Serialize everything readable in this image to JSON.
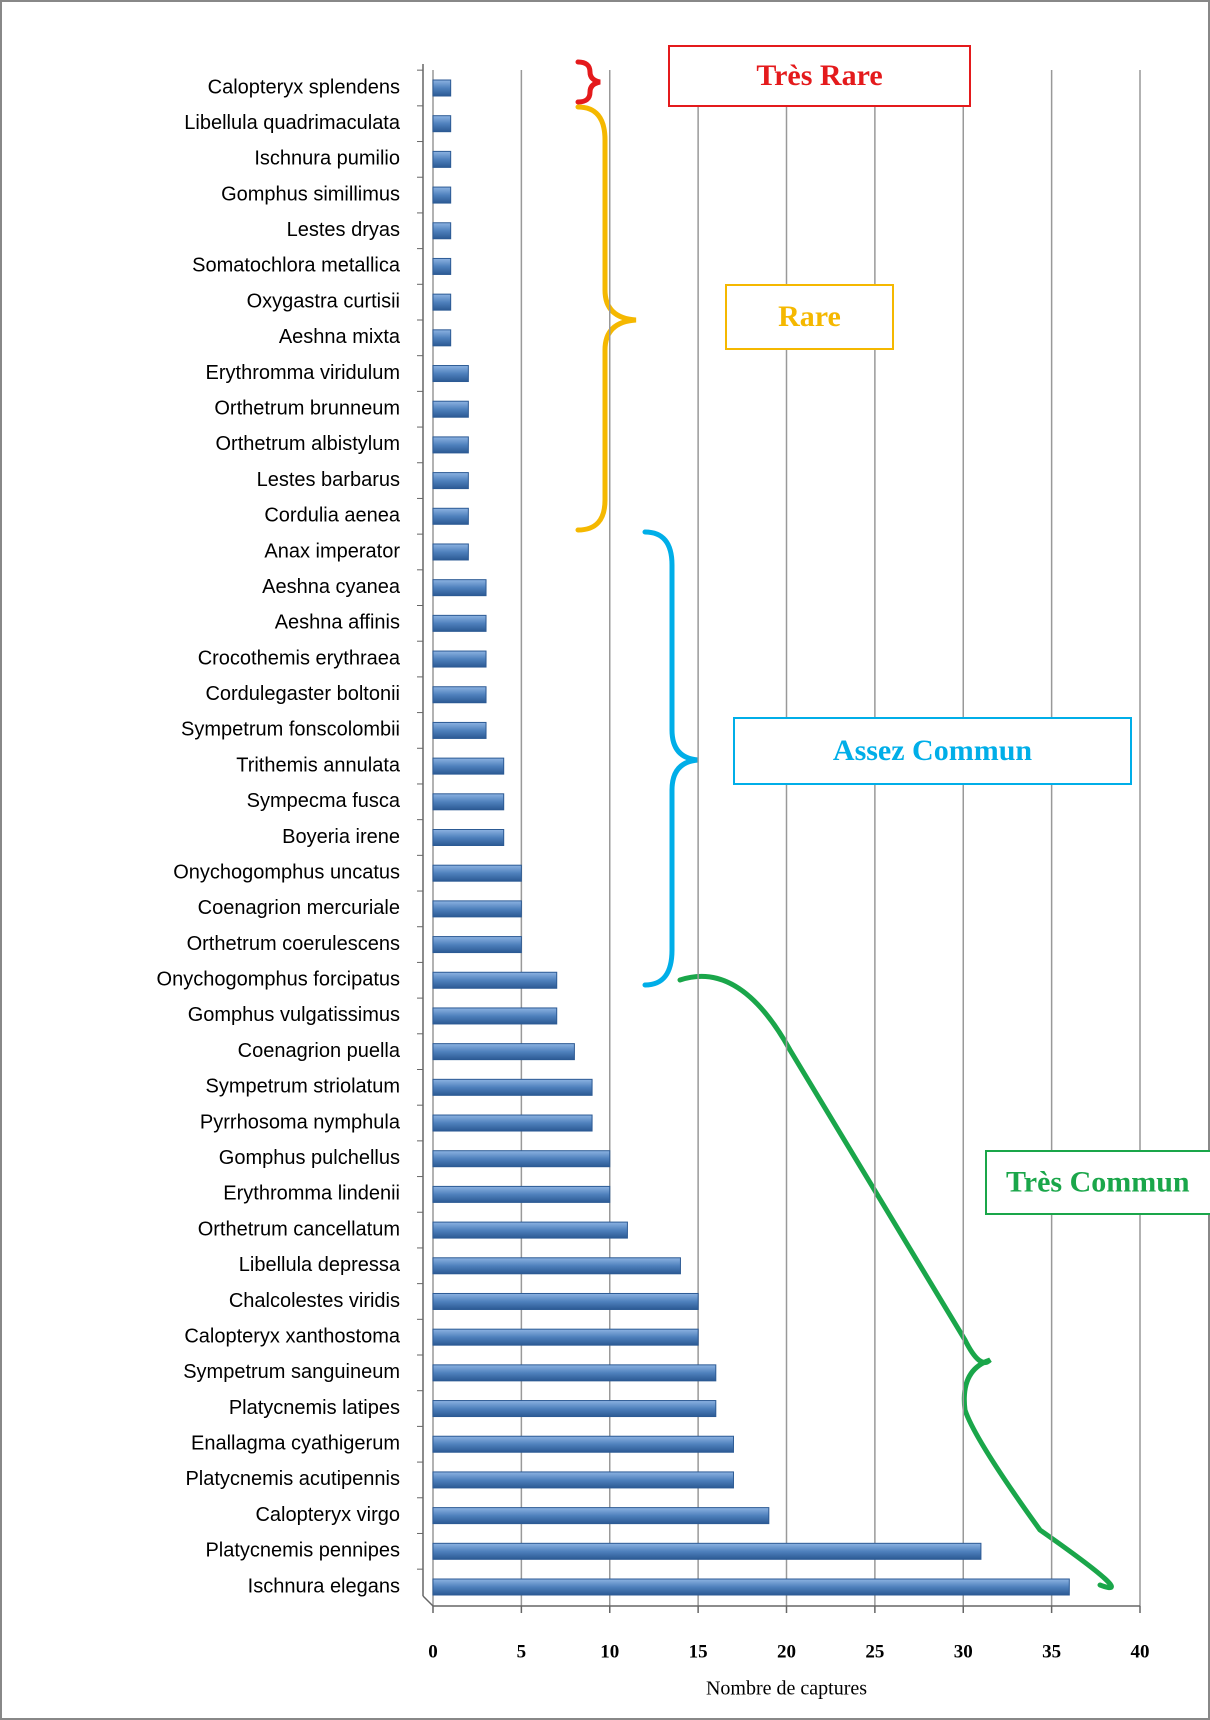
{
  "chart_data": {
    "type": "bar",
    "orientation": "horizontal",
    "categories": [
      "Calopteryx splendens",
      "Libellula quadrimaculata",
      "Ischnura pumilio",
      "Gomphus simillimus",
      "Lestes dryas",
      "Somatochlora metallica",
      "Oxygastra curtisii",
      "Aeshna mixta",
      "Erythromma viridulum",
      "Orthetrum brunneum",
      "Orthetrum albistylum",
      "Lestes barbarus",
      "Cordulia aenea",
      "Anax imperator",
      "Aeshna cyanea",
      "Aeshna affinis",
      "Crocothemis erythraea",
      "Cordulegaster boltonii",
      "Sympetrum fonscolombii",
      "Trithemis annulata",
      "Sympecma fusca",
      "Boyeria irene",
      "Onychogomphus uncatus",
      "Coenagrion mercuriale",
      "Orthetrum coerulescens",
      "Onychogomphus forcipatus",
      "Gomphus vulgatissimus",
      "Coenagrion puella",
      "Sympetrum striolatum",
      "Pyrrhosoma nymphula",
      "Gomphus pulchellus",
      "Erythromma lindenii",
      "Orthetrum cancellatum",
      "Libellula depressa",
      "Chalcolestes viridis",
      "Calopteryx xanthostoma",
      "Sympetrum sanguineum",
      "Platycnemis latipes",
      "Enallagma cyathigerum",
      "Platycnemis acutipennis",
      "Calopteryx virgo",
      "Platycnemis pennipes",
      "Ischnura elegans"
    ],
    "values": [
      1,
      1,
      1,
      1,
      1,
      1,
      1,
      1,
      2,
      2,
      2,
      2,
      2,
      2,
      3,
      3,
      3,
      3,
      3,
      4,
      4,
      4,
      5,
      5,
      5,
      7,
      7,
      8,
      9,
      9,
      10,
      10,
      11,
      14,
      15,
      15,
      16,
      16,
      17,
      17,
      19,
      31,
      36
    ],
    "color": "#4f81bd",
    "x_label": "Nombre de captures",
    "xlim": [
      0,
      40
    ],
    "xticks": [
      0,
      5,
      10,
      15,
      20,
      25,
      30,
      35,
      40
    ],
    "grid": true,
    "annotations": [
      {
        "text": "Très Rare",
        "color": "#e41a1c"
      },
      {
        "text": "Rare",
        "color": "#f5b800"
      },
      {
        "text": "Assez Commun",
        "color": "#00aee8"
      },
      {
        "text": "Très Commun",
        "color": "#1aa64a"
      }
    ]
  }
}
